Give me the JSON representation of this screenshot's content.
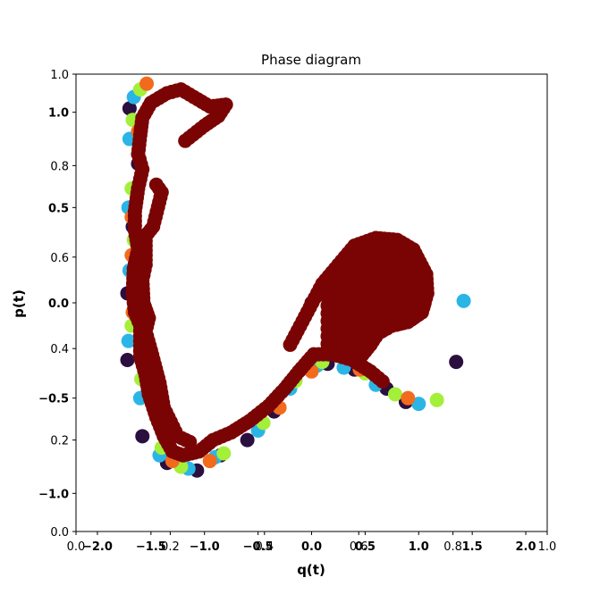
{
  "chart_data": {
    "type": "scatter",
    "title": "Phase diagram",
    "xlabel": "q(t)",
    "ylabel": "p(t)",
    "grid": false,
    "axes_overlay": [
      {
        "xlim": [
          0.0,
          1.0
        ],
        "ylim": [
          0.0,
          1.0
        ],
        "xticks": [
          "0.0",
          "0.2",
          "0.4",
          "0.6",
          "0.8",
          "1.0"
        ],
        "yticks": [
          "0.0",
          "0.2",
          "0.4",
          "0.6",
          "0.8",
          "1.0"
        ],
        "bold": false
      },
      {
        "xlim": [
          -2.2,
          2.2
        ],
        "ylim": [
          -1.2,
          1.2
        ],
        "xticks": [
          "−2.0",
          "−1.5",
          "−1.0",
          "−0.5",
          "0.0",
          "0.5",
          "1.0",
          "1.5",
          "2.0"
        ],
        "yticks": [
          "−1.0",
          "−0.5",
          "0.0",
          "0.5",
          "1.0"
        ],
        "bold": true
      }
    ],
    "colors": [
      "#2a0f3f",
      "#2bb5e6",
      "#a4ef3a",
      "#f26b1d",
      "#7a0404"
    ],
    "series": [
      {
        "color_index": 0,
        "points": [
          [
            -1.7,
            1.02
          ],
          [
            -1.62,
            0.73
          ],
          [
            -1.67,
            0.4
          ],
          [
            -1.72,
            0.05
          ],
          [
            -1.72,
            -0.3
          ],
          [
            -1.58,
            -0.7
          ],
          [
            -1.35,
            -0.84
          ],
          [
            -1.07,
            -0.88
          ],
          [
            -0.85,
            -0.8
          ],
          [
            -0.6,
            -0.72
          ],
          [
            -0.35,
            -0.57
          ],
          [
            -0.1,
            -0.35
          ],
          [
            0.15,
            -0.32
          ],
          [
            0.4,
            -0.35
          ],
          [
            0.7,
            -0.45
          ],
          [
            0.88,
            -0.52
          ],
          [
            1.35,
            -0.31
          ],
          [
            0.0,
            0.0
          ]
        ]
      },
      {
        "color_index": 1,
        "points": [
          [
            -1.66,
            1.08
          ],
          [
            -1.7,
            0.86
          ],
          [
            -1.71,
            0.5
          ],
          [
            -1.7,
            0.17
          ],
          [
            -1.71,
            -0.2
          ],
          [
            -1.6,
            -0.5
          ],
          [
            -1.42,
            -0.8
          ],
          [
            -1.15,
            -0.87
          ],
          [
            -0.9,
            -0.81
          ],
          [
            -0.5,
            -0.67
          ],
          [
            -0.2,
            -0.45
          ],
          [
            0.05,
            -0.33
          ],
          [
            0.3,
            -0.34
          ],
          [
            0.6,
            -0.43
          ],
          [
            1.0,
            -0.53
          ],
          [
            1.42,
            0.01
          ]
        ]
      },
      {
        "color_index": 2,
        "points": [
          [
            -1.6,
            1.12
          ],
          [
            -1.67,
            0.96
          ],
          [
            -1.68,
            0.6
          ],
          [
            -1.66,
            0.33
          ],
          [
            -1.68,
            -0.12
          ],
          [
            -1.59,
            -0.4
          ],
          [
            -1.4,
            -0.76
          ],
          [
            -1.22,
            -0.86
          ],
          [
            -0.82,
            -0.79
          ],
          [
            -0.45,
            -0.63
          ],
          [
            -0.15,
            -0.41
          ],
          [
            0.1,
            -0.31
          ],
          [
            0.5,
            -0.37
          ],
          [
            0.78,
            -0.48
          ],
          [
            1.17,
            -0.51
          ]
        ]
      },
      {
        "color_index": 3,
        "points": [
          [
            -1.54,
            1.15
          ],
          [
            -1.62,
            0.9
          ],
          [
            -1.68,
            0.45
          ],
          [
            -1.68,
            0.25
          ],
          [
            -1.67,
            -0.05
          ],
          [
            -1.58,
            -0.27
          ],
          [
            -1.45,
            -0.6
          ],
          [
            -1.3,
            -0.83
          ],
          [
            -0.95,
            -0.83
          ],
          [
            -0.3,
            -0.55
          ],
          [
            0.0,
            -0.36
          ],
          [
            0.45,
            -0.35
          ],
          [
            0.9,
            -0.5
          ]
        ]
      }
    ],
    "boundary_curve": [
      [
        -1.18,
        0.85
      ],
      [
        -1.0,
        0.93
      ],
      [
        -0.87,
        0.98
      ],
      [
        -0.8,
        1.04
      ],
      [
        -0.95,
        1.03
      ],
      [
        -1.1,
        1.08
      ],
      [
        -1.22,
        1.12
      ],
      [
        -1.35,
        1.1
      ],
      [
        -1.5,
        1.05
      ],
      [
        -1.58,
        0.97
      ],
      [
        -1.6,
        0.88
      ],
      [
        -1.62,
        0.78
      ],
      [
        -1.58,
        0.7
      ],
      [
        -1.62,
        0.6
      ],
      [
        -1.65,
        0.48
      ],
      [
        -1.65,
        0.38
      ],
      [
        -1.62,
        0.28
      ],
      [
        -1.66,
        0.18
      ],
      [
        -1.67,
        0.05
      ],
      [
        -1.65,
        -0.05
      ],
      [
        -1.6,
        -0.12
      ],
      [
        -1.6,
        -0.2
      ],
      [
        -1.6,
        -0.28
      ],
      [
        -1.55,
        -0.38
      ],
      [
        -1.52,
        -0.48
      ],
      [
        -1.45,
        -0.6
      ],
      [
        -1.38,
        -0.7
      ],
      [
        -1.3,
        -0.78
      ],
      [
        -1.2,
        -0.8
      ],
      [
        -1.05,
        -0.78
      ],
      [
        -0.92,
        -0.72
      ],
      [
        -0.75,
        -0.68
      ],
      [
        -0.58,
        -0.62
      ],
      [
        -0.4,
        -0.54
      ],
      [
        -0.25,
        -0.45
      ],
      [
        -0.12,
        -0.36
      ],
      [
        0.02,
        -0.27
      ],
      [
        0.2,
        -0.27
      ],
      [
        0.38,
        -0.3
      ],
      [
        0.55,
        -0.36
      ],
      [
        0.7,
        -0.43
      ]
    ],
    "boundary_top_envelope": [
      [
        -0.2,
        -0.22
      ],
      [
        0.1,
        0.1
      ],
      [
        0.4,
        0.3
      ],
      [
        0.6,
        0.34
      ],
      [
        0.8,
        0.33
      ],
      [
        0.95,
        0.28
      ],
      [
        1.07,
        0.15
      ],
      [
        1.08,
        0.05
      ],
      [
        1.03,
        -0.05
      ],
      [
        0.9,
        -0.1
      ],
      [
        0.75,
        -0.12
      ],
      [
        0.62,
        -0.16
      ],
      [
        0.55,
        -0.22
      ],
      [
        0.45,
        -0.29
      ],
      [
        0.3,
        -0.27
      ],
      [
        0.1,
        -0.25
      ]
    ],
    "side_branch": [
      [
        -1.45,
        0.62
      ],
      [
        -1.4,
        0.58
      ],
      [
        -1.48,
        0.4
      ],
      [
        -1.55,
        0.35
      ],
      [
        -1.55,
        0.2
      ],
      [
        -1.58,
        0.12
      ],
      [
        -1.57,
        0.0
      ],
      [
        -1.52,
        -0.08
      ],
      [
        -1.55,
        -0.15
      ],
      [
        -1.5,
        -0.25
      ],
      [
        -1.42,
        -0.42
      ],
      [
        -1.38,
        -0.55
      ],
      [
        -1.25,
        -0.7
      ],
      [
        -1.1,
        -0.74
      ]
    ]
  }
}
